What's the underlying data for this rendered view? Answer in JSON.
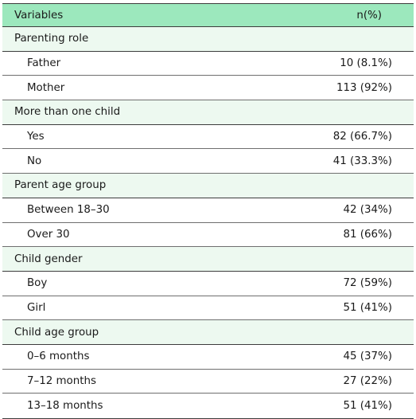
{
  "table": {
    "header": {
      "variables": "Variables",
      "value": "n(%)"
    },
    "groups": [
      {
        "label": "Parenting role",
        "items": [
          {
            "label": "Father",
            "value": "10 (8.1%)"
          },
          {
            "label": "Mother",
            "value": "113 (92%)"
          }
        ]
      },
      {
        "label": "More than one child",
        "items": [
          {
            "label": "Yes",
            "value": "82 (66.7%)"
          },
          {
            "label": "No",
            "value": "41 (33.3%)"
          }
        ]
      },
      {
        "label": "Parent age group",
        "items": [
          {
            "label": "Between 18–30",
            "value": "42 (34%)"
          },
          {
            "label": "Over 30",
            "value": "81 (66%)"
          }
        ]
      },
      {
        "label": "Child gender",
        "items": [
          {
            "label": "Boy",
            "value": "72 (59%)"
          },
          {
            "label": "Girl",
            "value": "51 (41%)"
          }
        ]
      },
      {
        "label": "Child age group",
        "items": [
          {
            "label": "0–6 months",
            "value": "45 (37%)"
          },
          {
            "label": "7–12 months",
            "value": "27 (22%)"
          },
          {
            "label": "13–18 months",
            "value": "51 (41%)"
          }
        ]
      }
    ]
  }
}
